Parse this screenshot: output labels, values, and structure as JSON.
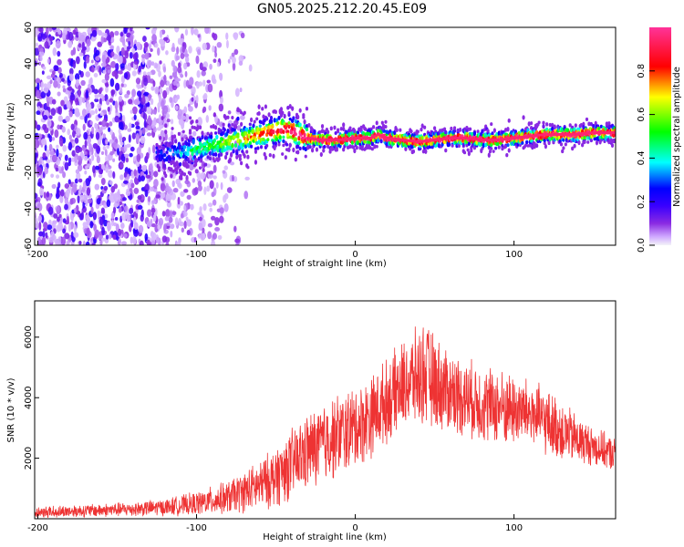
{
  "title": "GN05.2025.212.20.45.E09",
  "chart_data": [
    {
      "type": "heatmap",
      "title": "GN05.2025.212.20.45.E09",
      "xlabel": "Height of straight line (km)",
      "ylabel": "Frequency (Hz)",
      "xlim": [
        -202,
        164
      ],
      "ylim": [
        -60,
        60
      ],
      "xticks": [
        -200,
        -100,
        0,
        100
      ],
      "xtick_labels": [
        "-200",
        "-100",
        "0",
        "100"
      ],
      "yticks": [
        -60,
        -40,
        -20,
        0,
        20,
        40,
        60
      ],
      "ytick_labels": [
        "-60",
        "-40",
        "-20",
        "0",
        "20",
        "40",
        "60"
      ],
      "colorbar": {
        "label": "Normalized spectral amplitude",
        "range": [
          0,
          1
        ],
        "ticks": [
          0.0,
          0.2,
          0.4,
          0.6,
          0.8
        ],
        "tick_labels": [
          "0.0",
          "0.2",
          "0.4",
          "0.6",
          "0.8"
        ],
        "colors": [
          "#f3f3f8",
          "#cfa8ff",
          "#8a2be2",
          "#5a00ff",
          "#0000ff",
          "#00ffff",
          "#00ff00",
          "#ffff00",
          "#ff0000",
          "#ff33aa"
        ]
      },
      "signal_track": {
        "x": [
          -125,
          -110,
          -100,
          -90,
          -80,
          -70,
          -60,
          -50,
          -45,
          -40,
          -35,
          -30,
          -20,
          -10,
          0,
          10,
          15,
          20,
          30,
          40,
          50,
          60,
          70,
          80,
          90,
          100,
          110,
          120,
          130,
          140,
          150,
          164
        ],
        "y": [
          -10,
          -9,
          -7,
          -5,
          -3,
          -1,
          1,
          3,
          4,
          3,
          1,
          -1,
          -2,
          -2,
          -1,
          -1,
          1,
          -1,
          -2,
          -3,
          -2,
          -1,
          -1,
          -2,
          -2,
          -1,
          0,
          1,
          1,
          1,
          2,
          2
        ]
      },
      "noise_region": {
        "x_range": [
          -202,
          -125
        ],
        "y_range": [
          -60,
          60
        ]
      },
      "grid": false
    },
    {
      "type": "line",
      "xlabel": "Height of straight line (km)",
      "ylabel": "SNR (10 * v/v)",
      "xlim": [
        -202,
        164
      ],
      "ylim": [
        0,
        7200
      ],
      "xticks": [
        -200,
        -100,
        0,
        100
      ],
      "xtick_labels": [
        "-200",
        "-100",
        "0",
        "100"
      ],
      "yticks": [
        2000,
        4000,
        6000
      ],
      "ytick_labels": [
        "2000",
        "4000",
        "6000"
      ],
      "color": "#ee3333",
      "envelope": {
        "x": [
          -202,
          -180,
          -160,
          -140,
          -120,
          -100,
          -80,
          -70,
          -60,
          -50,
          -40,
          -30,
          -20,
          -10,
          0,
          10,
          20,
          30,
          40,
          45,
          50,
          60,
          70,
          80,
          90,
          100,
          110,
          120,
          130,
          140,
          150,
          164
        ],
        "mean": [
          200,
          250,
          280,
          320,
          380,
          500,
          700,
          900,
          1100,
          1400,
          1800,
          2200,
          2500,
          2800,
          3000,
          3400,
          3900,
          4400,
          4700,
          4800,
          4500,
          4200,
          4000,
          3800,
          3700,
          3600,
          3500,
          3200,
          2900,
          2600,
          2400,
          2100
        ],
        "spread": [
          200,
          220,
          240,
          260,
          300,
          420,
          600,
          750,
          900,
          1100,
          1300,
          1400,
          1500,
          1500,
          1500,
          1500,
          1500,
          1600,
          1800,
          1900,
          1700,
          1500,
          1400,
          1400,
          1400,
          1300,
          1200,
          1200,
          1100,
          900,
          700,
          600
        ]
      },
      "grid": false
    }
  ]
}
